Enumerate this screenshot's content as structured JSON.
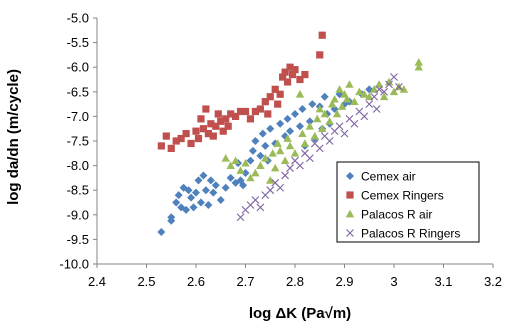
{
  "chart_data": {
    "type": "scatter",
    "xlabel": "log ΔK (Pa√m)",
    "ylabel": "log da/dn (m/cycle)",
    "xlim": [
      2.4,
      3.2
    ],
    "ylim": [
      -10.0,
      -5.0
    ],
    "x_ticks": [
      "2.4",
      "2.5",
      "2.6",
      "2.7",
      "2.8",
      "2.9",
      "3",
      "3.1",
      "3.2"
    ],
    "y_ticks": [
      "-5.0",
      "-5.5",
      "-6.0",
      "-6.5",
      "-7.0",
      "-7.5",
      "-8.0",
      "-8.5",
      "-9.0",
      "-9.5",
      "-10.0"
    ],
    "grid": false,
    "legend_position": "bottom-right",
    "series": [
      {
        "name": "Cemex air",
        "marker": "diamond",
        "color": "#4f81bd",
        "points": [
          [
            2.53,
            -9.35
          ],
          [
            2.55,
            -9.05
          ],
          [
            2.55,
            -9.12
          ],
          [
            2.56,
            -8.75
          ],
          [
            2.565,
            -8.6
          ],
          [
            2.57,
            -8.85
          ],
          [
            2.575,
            -8.45
          ],
          [
            2.58,
            -8.9
          ],
          [
            2.585,
            -8.5
          ],
          [
            2.59,
            -8.65
          ],
          [
            2.595,
            -8.85
          ],
          [
            2.6,
            -8.55
          ],
          [
            2.605,
            -8.3
          ],
          [
            2.61,
            -8.75
          ],
          [
            2.615,
            -8.2
          ],
          [
            2.62,
            -8.5
          ],
          [
            2.625,
            -8.8
          ],
          [
            2.63,
            -8.3
          ],
          [
            2.635,
            -8.55
          ],
          [
            2.64,
            -8.4
          ],
          [
            2.65,
            -8.7
          ],
          [
            2.66,
            -8.45
          ],
          [
            2.67,
            -8.25
          ],
          [
            2.68,
            -8.35
          ],
          [
            2.685,
            -7.95
          ],
          [
            2.69,
            -8.3
          ],
          [
            2.695,
            -8.4
          ],
          [
            2.7,
            -8.15
          ],
          [
            2.71,
            -7.9
          ],
          [
            2.715,
            -7.7
          ],
          [
            2.72,
            -7.5
          ],
          [
            2.73,
            -7.8
          ],
          [
            2.735,
            -7.35
          ],
          [
            2.74,
            -7.6
          ],
          [
            2.745,
            -7.9
          ],
          [
            2.75,
            -7.25
          ],
          [
            2.76,
            -7.55
          ],
          [
            2.77,
            -7.15
          ],
          [
            2.78,
            -7.4
          ],
          [
            2.785,
            -7.05
          ],
          [
            2.79,
            -7.3
          ],
          [
            2.8,
            -6.95
          ],
          [
            2.81,
            -7.2
          ],
          [
            2.815,
            -6.85
          ],
          [
            2.82,
            -7.6
          ],
          [
            2.83,
            -7.1
          ],
          [
            2.835,
            -6.75
          ],
          [
            2.84,
            -7.45
          ],
          [
            2.85,
            -6.8
          ],
          [
            2.855,
            -7.25
          ],
          [
            2.86,
            -6.6
          ],
          [
            2.865,
            -6.95
          ],
          [
            2.87,
            -7.15
          ],
          [
            2.88,
            -6.85
          ],
          [
            2.89,
            -6.55
          ],
          [
            2.9,
            -6.75
          ],
          [
            2.91,
            -6.7
          ],
          [
            2.935,
            -6.55
          ],
          [
            2.95,
            -6.45
          ]
        ]
      },
      {
        "name": "Cemex Ringers",
        "marker": "square",
        "color": "#c0504d",
        "points": [
          [
            2.53,
            -7.6
          ],
          [
            2.54,
            -7.4
          ],
          [
            2.55,
            -7.65
          ],
          [
            2.56,
            -7.5
          ],
          [
            2.57,
            -7.45
          ],
          [
            2.58,
            -7.35
          ],
          [
            2.59,
            -7.55
          ],
          [
            2.6,
            -7.3
          ],
          [
            2.605,
            -7.45
          ],
          [
            2.61,
            -7.05
          ],
          [
            2.615,
            -7.25
          ],
          [
            2.62,
            -6.85
          ],
          [
            2.625,
            -7.35
          ],
          [
            2.63,
            -7.15
          ],
          [
            2.635,
            -7.4
          ],
          [
            2.64,
            -7.2
          ],
          [
            2.645,
            -6.95
          ],
          [
            2.65,
            -7.1
          ],
          [
            2.655,
            -7.3
          ],
          [
            2.66,
            -7.05
          ],
          [
            2.665,
            -7.2
          ],
          [
            2.67,
            -6.95
          ],
          [
            2.68,
            -7.0
          ],
          [
            2.69,
            -6.9
          ],
          [
            2.7,
            -6.9
          ],
          [
            2.71,
            -7.05
          ],
          [
            2.72,
            -6.9
          ],
          [
            2.73,
            -6.85
          ],
          [
            2.74,
            -6.7
          ],
          [
            2.745,
            -6.95
          ],
          [
            2.75,
            -6.6
          ],
          [
            2.76,
            -6.45
          ],
          [
            2.765,
            -6.75
          ],
          [
            2.77,
            -6.55
          ],
          [
            2.775,
            -6.2
          ],
          [
            2.78,
            -6.1
          ],
          [
            2.785,
            -6.3
          ],
          [
            2.79,
            -6.0
          ],
          [
            2.795,
            -6.15
          ],
          [
            2.8,
            -6.05
          ],
          [
            2.81,
            -6.25
          ],
          [
            2.82,
            -6.15
          ],
          [
            2.85,
            -5.75
          ],
          [
            2.855,
            -5.35
          ]
        ]
      },
      {
        "name": "Palacos R air",
        "marker": "triangle",
        "color": "#9bbb59",
        "points": [
          [
            2.66,
            -7.85
          ],
          [
            2.67,
            -8.0
          ],
          [
            2.68,
            -7.9
          ],
          [
            2.69,
            -8.1
          ],
          [
            2.7,
            -7.95
          ],
          [
            2.71,
            -8.25
          ],
          [
            2.72,
            -8.15
          ],
          [
            2.73,
            -8.0
          ],
          [
            2.74,
            -7.85
          ],
          [
            2.75,
            -8.3
          ],
          [
            2.755,
            -7.75
          ],
          [
            2.76,
            -8.05
          ],
          [
            2.765,
            -7.55
          ],
          [
            2.77,
            -7.7
          ],
          [
            2.78,
            -7.9
          ],
          [
            2.785,
            -7.45
          ],
          [
            2.79,
            -7.6
          ],
          [
            2.8,
            -7.75
          ],
          [
            2.81,
            -6.55
          ],
          [
            2.815,
            -7.35
          ],
          [
            2.82,
            -7.55
          ],
          [
            2.83,
            -7.2
          ],
          [
            2.84,
            -7.4
          ],
          [
            2.845,
            -7.05
          ],
          [
            2.85,
            -6.85
          ],
          [
            2.855,
            -7.25
          ],
          [
            2.86,
            -6.95
          ],
          [
            2.87,
            -7.1
          ],
          [
            2.875,
            -6.75
          ],
          [
            2.88,
            -6.65
          ],
          [
            2.885,
            -6.95
          ],
          [
            2.89,
            -6.45
          ],
          [
            2.895,
            -6.8
          ],
          [
            2.9,
            -6.55
          ],
          [
            2.905,
            -6.65
          ],
          [
            2.91,
            -6.35
          ],
          [
            2.92,
            -6.7
          ],
          [
            2.93,
            -6.5
          ],
          [
            2.94,
            -6.55
          ],
          [
            2.95,
            -6.6
          ],
          [
            2.96,
            -6.45
          ],
          [
            2.97,
            -6.35
          ],
          [
            2.98,
            -6.6
          ],
          [
            2.99,
            -6.3
          ],
          [
            3.0,
            -6.5
          ],
          [
            3.01,
            -6.4
          ],
          [
            3.02,
            -6.45
          ],
          [
            3.05,
            -5.9
          ],
          [
            3.05,
            -6.0
          ]
        ]
      },
      {
        "name": "Palacos R Ringers",
        "marker": "x",
        "color": "#8064a2",
        "points": [
          [
            2.69,
            -9.05
          ],
          [
            2.7,
            -8.9
          ],
          [
            2.71,
            -8.8
          ],
          [
            2.72,
            -8.7
          ],
          [
            2.73,
            -8.85
          ],
          [
            2.74,
            -8.6
          ],
          [
            2.75,
            -8.5
          ],
          [
            2.76,
            -8.35
          ],
          [
            2.77,
            -8.45
          ],
          [
            2.78,
            -8.2
          ],
          [
            2.79,
            -8.05
          ],
          [
            2.8,
            -7.9
          ],
          [
            2.81,
            -8.0
          ],
          [
            2.82,
            -7.75
          ],
          [
            2.83,
            -7.85
          ],
          [
            2.84,
            -7.55
          ],
          [
            2.85,
            -7.65
          ],
          [
            2.86,
            -7.4
          ],
          [
            2.87,
            -7.5
          ],
          [
            2.88,
            -7.3
          ],
          [
            2.89,
            -7.2
          ],
          [
            2.9,
            -7.35
          ],
          [
            2.91,
            -7.05
          ],
          [
            2.92,
            -7.15
          ],
          [
            2.93,
            -6.9
          ],
          [
            2.94,
            -7.0
          ],
          [
            2.95,
            -6.75
          ],
          [
            2.96,
            -6.6
          ],
          [
            2.965,
            -6.85
          ],
          [
            2.97,
            -6.45
          ],
          [
            2.98,
            -6.5
          ],
          [
            2.99,
            -6.35
          ],
          [
            3.0,
            -6.2
          ],
          [
            3.01,
            -6.4
          ]
        ]
      }
    ]
  }
}
